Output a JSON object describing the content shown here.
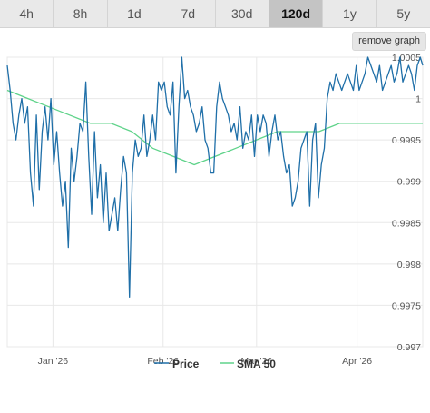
{
  "tabs": [
    {
      "label": "4h",
      "active": false
    },
    {
      "label": "8h",
      "active": false
    },
    {
      "label": "1d",
      "active": false
    },
    {
      "label": "7d",
      "active": false
    },
    {
      "label": "30d",
      "active": false
    },
    {
      "label": "120d",
      "active": true
    },
    {
      "label": "1y",
      "active": false
    },
    {
      "label": "5y",
      "active": false
    }
  ],
  "remove_graph_label": "remove graph",
  "colors": {
    "price": "#1f6fa8",
    "sma": "#5fd38a",
    "grid": "#e8e8e8",
    "active_tab": "#c4c4c4"
  },
  "chart_data": {
    "type": "line",
    "title": "",
    "xlabel": "",
    "ylabel": "",
    "ylim": [
      0.997,
      1.0005
    ],
    "yticks": [
      {
        "value": 1.0005,
        "label": "1.0005"
      },
      {
        "value": 1.0,
        "label": "1"
      },
      {
        "value": 0.9995,
        "label": "0.9995"
      },
      {
        "value": 0.999,
        "label": "0.999"
      },
      {
        "value": 0.9985,
        "label": "0.9985"
      },
      {
        "value": 0.998,
        "label": "0.998"
      },
      {
        "value": 0.9975,
        "label": "0.9975"
      },
      {
        "value": 0.997,
        "label": "0.997"
      }
    ],
    "xrange": [
      0,
      1
    ],
    "xticks": [
      {
        "value": 0.11,
        "label": "Jan '26"
      },
      {
        "value": 0.375,
        "label": "Feb '26"
      },
      {
        "value": 0.6,
        "label": "Mar '26"
      },
      {
        "value": 0.842,
        "label": "Apr '26"
      }
    ],
    "grid": true,
    "legend_position": "bottom",
    "series": [
      {
        "name": "Price",
        "x": [
          0.0,
          0.007,
          0.014,
          0.021,
          0.028,
          0.035,
          0.042,
          0.049,
          0.056,
          0.063,
          0.07,
          0.077,
          0.084,
          0.091,
          0.098,
          0.105,
          0.112,
          0.119,
          0.126,
          0.133,
          0.14,
          0.147,
          0.154,
          0.161,
          0.168,
          0.175,
          0.182,
          0.189,
          0.196,
          0.203,
          0.21,
          0.217,
          0.224,
          0.231,
          0.238,
          0.245,
          0.252,
          0.259,
          0.266,
          0.273,
          0.28,
          0.287,
          0.294,
          0.301,
          0.308,
          0.315,
          0.322,
          0.329,
          0.336,
          0.343,
          0.35,
          0.357,
          0.364,
          0.371,
          0.378,
          0.385,
          0.392,
          0.399,
          0.406,
          0.413,
          0.42,
          0.427,
          0.434,
          0.441,
          0.448,
          0.455,
          0.462,
          0.469,
          0.476,
          0.483,
          0.49,
          0.497,
          0.504,
          0.511,
          0.518,
          0.525,
          0.532,
          0.539,
          0.546,
          0.553,
          0.56,
          0.567,
          0.574,
          0.581,
          0.588,
          0.595,
          0.602,
          0.609,
          0.616,
          0.623,
          0.63,
          0.637,
          0.644,
          0.651,
          0.658,
          0.665,
          0.672,
          0.679,
          0.686,
          0.693,
          0.7,
          0.707,
          0.714,
          0.721,
          0.728,
          0.735,
          0.742,
          0.749,
          0.756,
          0.763,
          0.77,
          0.777,
          0.784,
          0.791,
          0.798,
          0.805,
          0.812,
          0.819,
          0.826,
          0.833,
          0.84,
          0.847,
          0.854,
          0.861,
          0.868,
          0.875,
          0.882,
          0.889,
          0.896,
          0.903,
          0.91,
          0.917,
          0.924,
          0.931,
          0.938,
          0.945,
          0.952,
          0.959,
          0.966,
          0.973,
          0.98,
          0.987,
          0.994,
          1.0
        ],
        "values": [
          1.0004,
          1.0001,
          0.9997,
          0.9995,
          0.9998,
          1.0,
          0.9997,
          0.9999,
          0.9991,
          0.9987,
          0.9998,
          0.9989,
          0.9996,
          0.9999,
          0.9995,
          1.0,
          0.9992,
          0.9996,
          0.9991,
          0.9987,
          0.999,
          0.9982,
          0.9994,
          0.999,
          0.9993,
          0.9997,
          0.9996,
          1.0002,
          0.9993,
          0.9986,
          0.9996,
          0.9988,
          0.9992,
          0.9985,
          0.9991,
          0.9984,
          0.9986,
          0.9988,
          0.9984,
          0.9989,
          0.9993,
          0.9991,
          0.9976,
          0.9991,
          0.9995,
          0.9993,
          0.9994,
          0.9998,
          0.9993,
          0.9995,
          0.9998,
          0.9995,
          1.0002,
          1.0001,
          1.0002,
          0.9999,
          0.9998,
          1.0002,
          0.9991,
          0.9999,
          1.0005,
          1.0,
          1.0001,
          0.9999,
          0.9998,
          0.9996,
          0.9997,
          0.9999,
          0.9995,
          0.9994,
          0.9991,
          0.9991,
          0.9999,
          1.0002,
          1.0,
          0.9999,
          0.9998,
          0.9996,
          0.9997,
          0.9995,
          0.9999,
          0.9994,
          0.9996,
          0.9995,
          0.9998,
          0.9993,
          0.9998,
          0.9996,
          0.9998,
          0.9997,
          0.9993,
          0.9996,
          0.9998,
          0.9995,
          0.9996,
          0.9993,
          0.9991,
          0.9992,
          0.9987,
          0.9988,
          0.999,
          0.9994,
          0.9995,
          0.9996,
          0.9987,
          0.9995,
          0.9997,
          0.9988,
          0.9992,
          0.9994,
          1.0,
          1.0002,
          1.0001,
          1.0003,
          1.0002,
          1.0001,
          1.0002,
          1.0003,
          1.0002,
          1.0001,
          1.0004,
          1.0001,
          1.0002,
          1.0003,
          1.0005,
          1.0004,
          1.0003,
          1.0002,
          1.0004,
          1.0001,
          1.0002,
          1.0003,
          1.0004,
          1.0002,
          1.0003,
          1.0005,
          1.0002,
          1.0003,
          1.0004,
          1.0003,
          1.0001,
          1.0004,
          1.0005,
          1.0004
        ]
      },
      {
        "name": "SMA 50",
        "x": [
          0.0,
          0.05,
          0.1,
          0.15,
          0.2,
          0.25,
          0.3,
          0.35,
          0.4,
          0.45,
          0.5,
          0.55,
          0.6,
          0.65,
          0.7,
          0.75,
          0.8,
          0.85,
          0.9,
          0.95,
          1.0
        ],
        "values": [
          1.0001,
          1.0,
          0.9999,
          0.9998,
          0.9997,
          0.9997,
          0.9996,
          0.9994,
          0.9993,
          0.9992,
          0.9993,
          0.9994,
          0.9995,
          0.9996,
          0.9996,
          0.9996,
          0.9997,
          0.9997,
          0.9997,
          0.9997,
          0.9997
        ]
      }
    ]
  }
}
